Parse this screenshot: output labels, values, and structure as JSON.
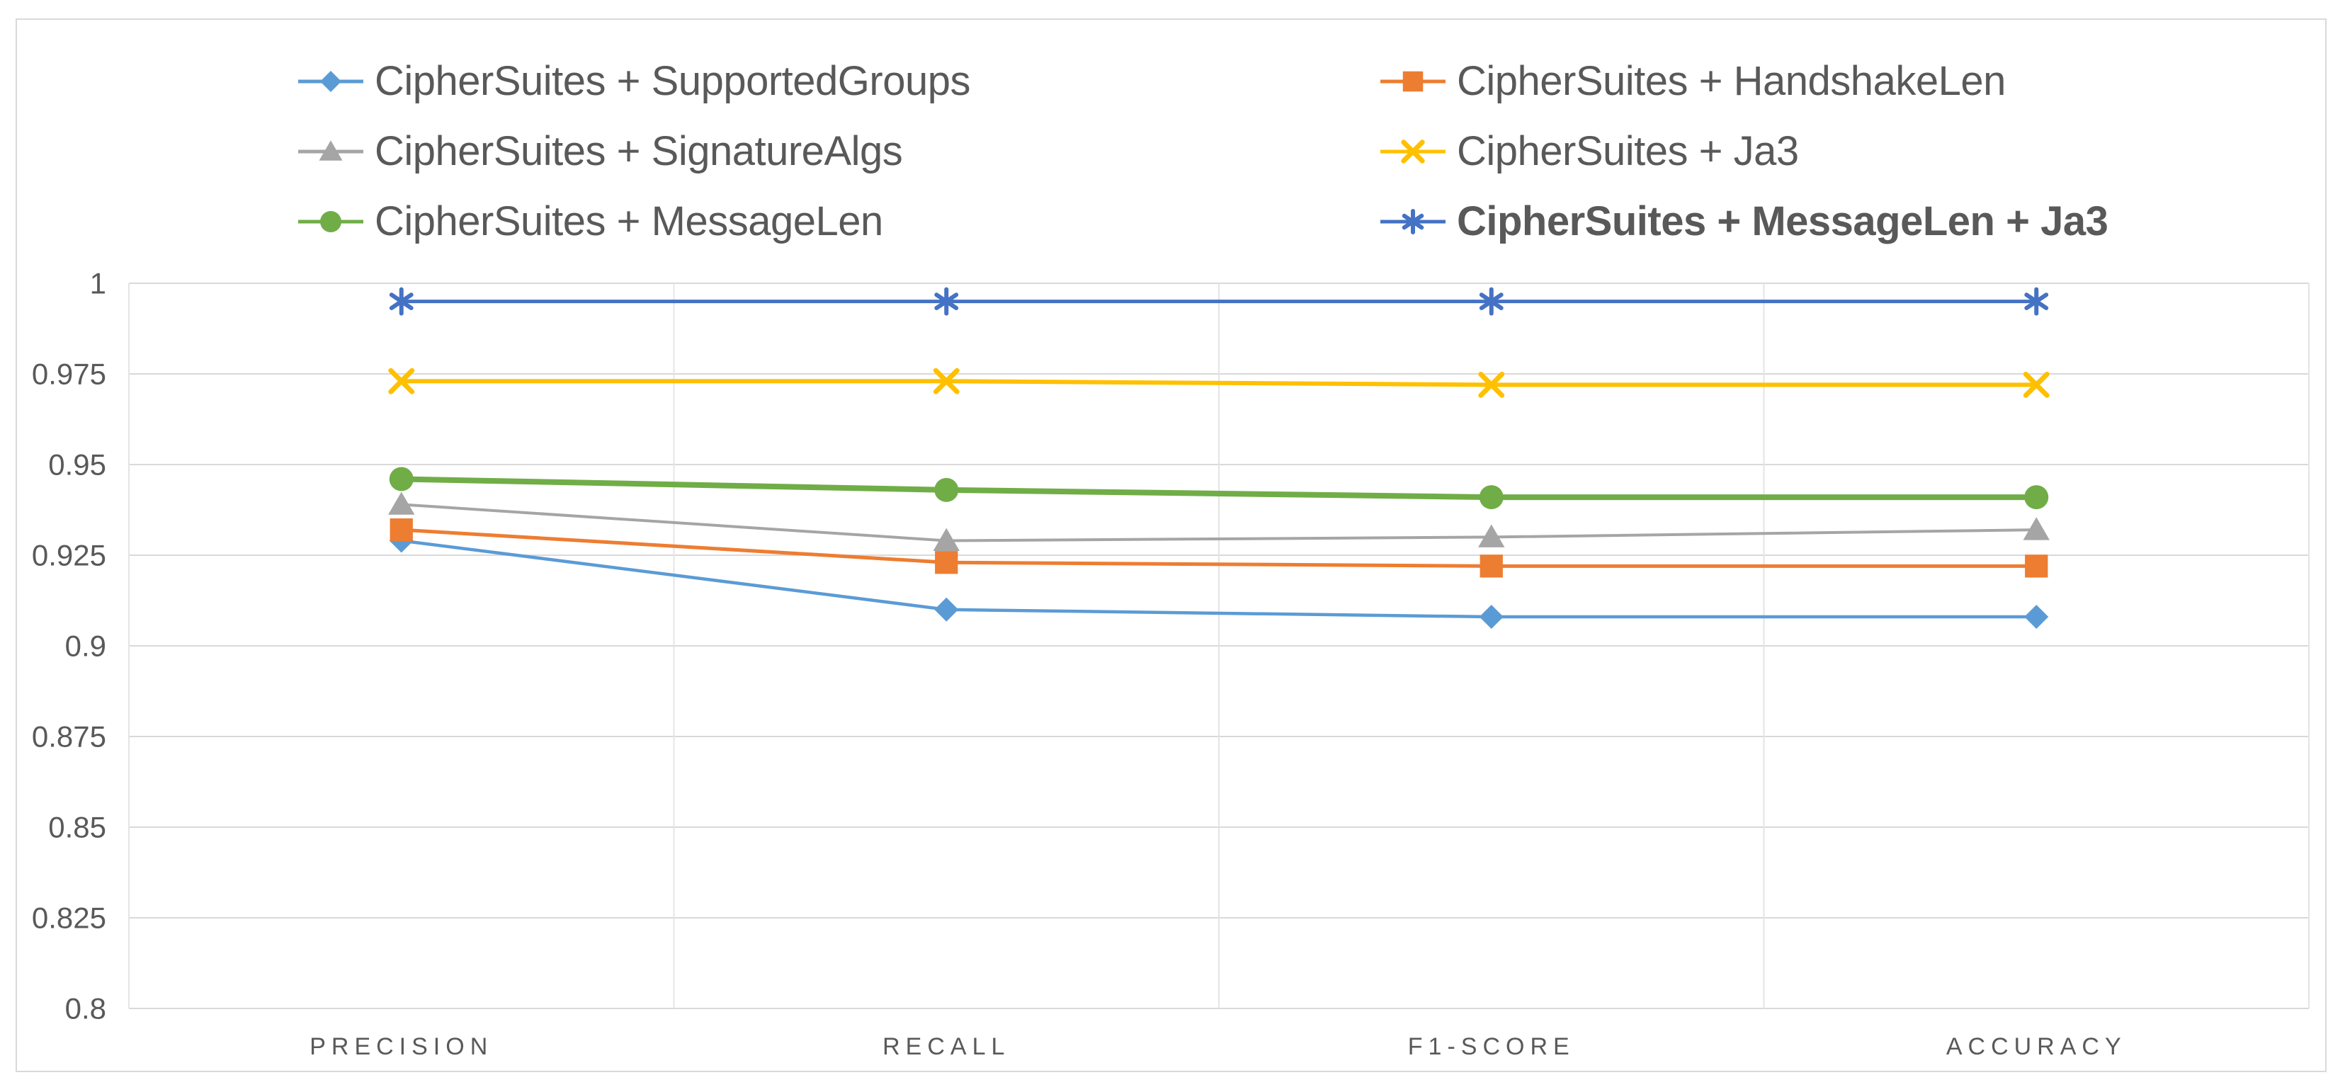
{
  "chart_data": {
    "type": "line",
    "title": "",
    "xlabel": "",
    "ylabel": "",
    "categories": [
      "PRECISION",
      "RECALL",
      "F1-SCORE",
      "ACCURACY"
    ],
    "series": [
      {
        "name": "CipherSuites + SupportedGroups",
        "color": "#5B9BD5",
        "marker": "diamond",
        "bold": false,
        "values": [
          0.929,
          0.91,
          0.908,
          0.908
        ]
      },
      {
        "name": "CipherSuites + HandshakeLen",
        "color": "#ED7D31",
        "marker": "square",
        "bold": false,
        "values": [
          0.932,
          0.923,
          0.922,
          0.922
        ]
      },
      {
        "name": "CipherSuites + SignatureAlgs",
        "color": "#A5A5A5",
        "marker": "triangle",
        "bold": false,
        "values": [
          0.939,
          0.929,
          0.93,
          0.932
        ]
      },
      {
        "name": "CipherSuites + Ja3",
        "color": "#FFC000",
        "marker": "x",
        "bold": false,
        "values": [
          0.973,
          0.973,
          0.972,
          0.972
        ]
      },
      {
        "name": "CipherSuites + MessageLen",
        "color": "#70AD47",
        "marker": "circle",
        "bold": false,
        "values": [
          0.946,
          0.943,
          0.941,
          0.941
        ]
      },
      {
        "name": "CipherSuites + MessageLen + Ja3",
        "color": "#4472C4",
        "marker": "asterisk",
        "bold": true,
        "values": [
          0.995,
          0.995,
          0.995,
          0.995
        ]
      }
    ],
    "ylim": [
      0.8,
      1.0
    ],
    "y_ticks": [
      "1",
      "0.975",
      "0.95",
      "0.925",
      "0.9",
      "0.875",
      "0.85",
      "0.825",
      "0.8"
    ],
    "y_tick_values": [
      1.0,
      0.975,
      0.95,
      0.925,
      0.9,
      0.875,
      0.85,
      0.825,
      0.8
    ],
    "grid": true,
    "legend_position": "top"
  },
  "colors": {
    "axis_text": "#595959",
    "legend_text": "#595959",
    "gridline_horizontal": "#D9D9D9",
    "gridline_vertical": "#E4E4E4",
    "frame_border": "#D9D9D9",
    "background": "#FFFFFF"
  }
}
